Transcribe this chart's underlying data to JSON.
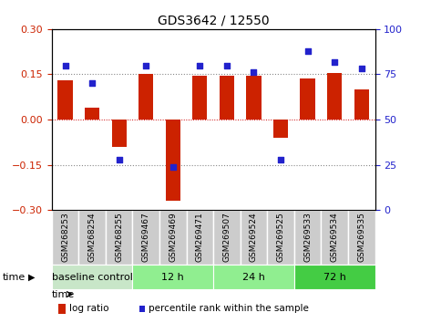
{
  "title": "GDS3642 / 12550",
  "categories": [
    "GSM268253",
    "GSM268254",
    "GSM268255",
    "GSM269467",
    "GSM269469",
    "GSM269471",
    "GSM269507",
    "GSM269524",
    "GSM269525",
    "GSM269533",
    "GSM269534",
    "GSM269535"
  ],
  "log_ratio": [
    0.13,
    0.04,
    -0.09,
    0.15,
    -0.27,
    0.145,
    0.145,
    0.145,
    -0.06,
    0.135,
    0.155,
    0.1
  ],
  "percentile_rank": [
    80,
    70,
    28,
    80,
    24,
    80,
    80,
    76,
    28,
    88,
    82,
    78
  ],
  "bar_color": "#cc2200",
  "dot_color": "#2222cc",
  "ylim_left": [
    -0.3,
    0.3
  ],
  "ylim_right": [
    0,
    100
  ],
  "yticks_left": [
    -0.3,
    -0.15,
    0,
    0.15,
    0.3
  ],
  "yticks_right": [
    0,
    25,
    50,
    75,
    100
  ],
  "hlines": [
    0.15,
    0,
    -0.15
  ],
  "hline_colors": [
    "#888888",
    "#cc0000",
    "#888888"
  ],
  "hline_styles": [
    "dotted",
    "dotted",
    "dotted"
  ],
  "groups": [
    {
      "label": "baseline control",
      "start": 0,
      "end": 3,
      "color": "#c8e6c8"
    },
    {
      "label": "12 h",
      "start": 3,
      "end": 6,
      "color": "#90ee90"
    },
    {
      "label": "24 h",
      "start": 6,
      "end": 9,
      "color": "#90ee90"
    },
    {
      "label": "72 h",
      "start": 9,
      "end": 12,
      "color": "#44cc44"
    }
  ],
  "time_label": "time",
  "legend_log_ratio": "log ratio",
  "legend_percentile": "percentile rank within the sample",
  "bar_width": 0.55,
  "bg_color": "#ffffff",
  "plot_bg": "#ffffff",
  "label_bg": "#cccccc",
  "label_divider": "#ffffff"
}
